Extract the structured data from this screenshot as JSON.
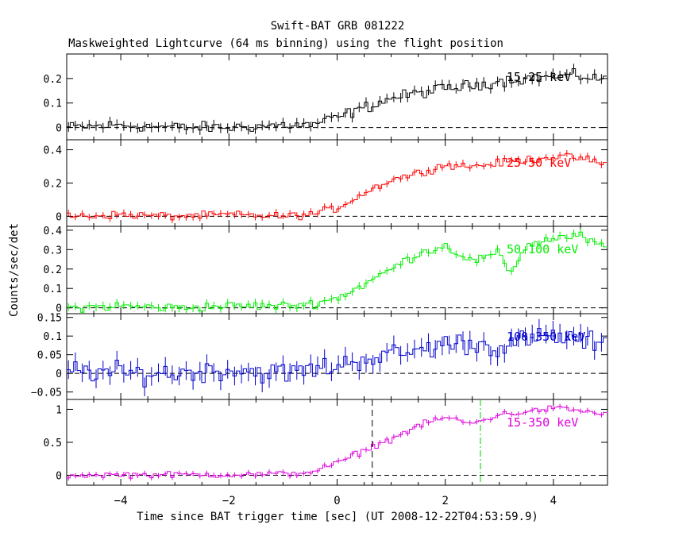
{
  "header": {
    "title": "Swift-BAT GRB 081222",
    "subtitle": "Maskweighted Lightcurve (64 ms binning) using the flight position"
  },
  "chart_data": {
    "type": "line",
    "xlabel": "Time since BAT trigger time [sec] (UT 2008-12-22T04:53:59.9)",
    "ylabel": "Counts/sec/det",
    "xlim": [
      -5,
      5
    ],
    "x_ticks": [
      "−4",
      "−2",
      "0",
      "2",
      "4"
    ],
    "x_tick_values": [
      -4,
      -2,
      0,
      2,
      4
    ],
    "markers": [
      {
        "panel": 4,
        "x": 0.65,
        "style": "dashed",
        "color": "#000000"
      },
      {
        "panel": 4,
        "x": 2.65,
        "style": "dashdot",
        "color": "#00cc00"
      }
    ],
    "panels": [
      {
        "name": "15-25 keV",
        "color": "#000000",
        "ylim": [
          -0.05,
          0.3
        ],
        "yticks": [
          0,
          0.1,
          0.2
        ],
        "ytick_labels": [
          "0",
          "0.1",
          "0.2"
        ],
        "series": {
          "t": [
            -5,
            -4,
            -3,
            -2,
            -1,
            -0.5,
            0,
            0.5,
            1,
            1.5,
            2,
            2.5,
            3,
            3.5,
            4,
            4.5,
            5
          ],
          "y": [
            0.0,
            0.01,
            0.0,
            0.0,
            0.01,
            0.01,
            0.04,
            0.08,
            0.12,
            0.14,
            0.16,
            0.17,
            0.19,
            0.2,
            0.21,
            0.21,
            0.2
          ]
        },
        "error": 0.02
      },
      {
        "name": "25-50 keV",
        "color": "#ff0000",
        "ylim": [
          -0.06,
          0.46
        ],
        "yticks": [
          0,
          0.2,
          0.4
        ],
        "ytick_labels": [
          "0",
          "0.2",
          "0.4"
        ],
        "series": {
          "t": [
            -5,
            -4,
            -3,
            -2,
            -1,
            -0.5,
            0,
            0.5,
            1,
            1.5,
            2,
            2.5,
            3,
            3.5,
            4,
            4.5,
            5
          ],
          "y": [
            0.0,
            0.01,
            0.0,
            0.01,
            0.0,
            0.01,
            0.05,
            0.14,
            0.22,
            0.26,
            0.31,
            0.3,
            0.32,
            0.34,
            0.36,
            0.35,
            0.31
          ]
        },
        "error": 0.02
      },
      {
        "name": "50-100 keV",
        "color": "#00ee00",
        "ylim": [
          -0.03,
          0.42
        ],
        "yticks": [
          0,
          0.1,
          0.2,
          0.3,
          0.4
        ],
        "ytick_labels": [
          "0",
          "0.1",
          "0.2",
          "0.3",
          "0.4"
        ],
        "series": {
          "t": [
            -5,
            -4,
            -3,
            -2,
            -1,
            -0.5,
            0,
            0.5,
            1,
            1.5,
            2,
            2.5,
            3,
            3.2,
            3.5,
            4,
            4.5,
            5
          ],
          "y": [
            0.0,
            0.01,
            0.0,
            0.01,
            0.01,
            0.02,
            0.05,
            0.12,
            0.2,
            0.28,
            0.32,
            0.24,
            0.28,
            0.18,
            0.32,
            0.36,
            0.37,
            0.3
          ]
        },
        "error": 0.02
      },
      {
        "name": "100-350 keV",
        "color": "#0000cc",
        "ylim": [
          -0.07,
          0.16
        ],
        "yticks": [
          -0.05,
          0,
          0.05,
          0.1,
          0.15
        ],
        "ytick_labels": [
          "−0.05",
          "0",
          "0.05",
          "0.1",
          "0.15"
        ],
        "series": {
          "t": [
            -5,
            -4,
            -3,
            -2,
            -1,
            -0.5,
            0,
            0.5,
            1,
            1.5,
            2,
            2.5,
            3,
            3.5,
            4,
            4.5,
            5
          ],
          "y": [
            0.01,
            0.0,
            0.0,
            0.01,
            0.0,
            0.01,
            0.02,
            0.04,
            0.05,
            0.06,
            0.08,
            0.08,
            0.07,
            0.09,
            0.1,
            0.09,
            0.07
          ]
        },
        "error": 0.025
      },
      {
        "name": "15-350 keV",
        "color": "#dd00dd",
        "ylim": [
          -0.15,
          1.15
        ],
        "yticks": [
          0,
          0.5,
          1
        ],
        "ytick_labels": [
          "0",
          "0.5",
          "1"
        ],
        "series": {
          "t": [
            -5,
            -4,
            -3,
            -2,
            -1,
            -0.5,
            0,
            0.5,
            1,
            1.5,
            2,
            2.5,
            3,
            3.5,
            4,
            4.5,
            5
          ],
          "y": [
            0.0,
            0.01,
            0.01,
            0.01,
            0.02,
            0.05,
            0.18,
            0.38,
            0.55,
            0.75,
            0.88,
            0.78,
            0.92,
            0.96,
            1.02,
            0.98,
            0.92
          ]
        },
        "error": 0.04
      }
    ]
  }
}
